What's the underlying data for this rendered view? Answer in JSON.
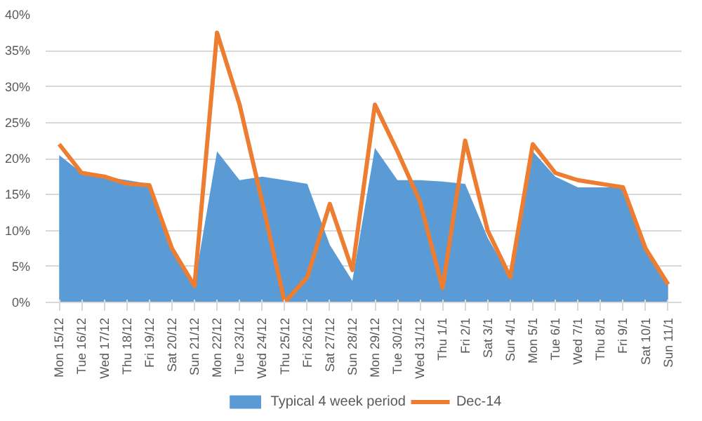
{
  "chart_data": {
    "type": "area",
    "categories": [
      "Mon 15/12",
      "Tue 16/12",
      "Wed 17/12",
      "Thu 18/12",
      "Fri 19/12",
      "Sat 20/12",
      "Sun 21/12",
      "Mon 22/12",
      "Tue 23/12",
      "Wed 24/12",
      "Thu 25/12",
      "Fri 26/12",
      "Sat 27/12",
      "Sun 28/12",
      "Mon 29/12",
      "Tue 30/12",
      "Wed 31/12",
      "Thu 1/1",
      "Fri 2/1",
      "Sat 3/1",
      "Sun 4/1",
      "Mon 5/1",
      "Tue 6/1",
      "Wed 7/1",
      "Thu 8/1",
      "Fri 9/1",
      "Sat 10/1",
      "Sun 11/1"
    ],
    "series": [
      {
        "name": "Typical 4 week period",
        "color": "#5b9bd5",
        "values": [
          20.5,
          18,
          17.5,
          17,
          16.5,
          8,
          2.5,
          21,
          17,
          17.5,
          17,
          16.5,
          8,
          3,
          21.5,
          17,
          17,
          16.8,
          16.5,
          9,
          3.5,
          21,
          17.5,
          16,
          16,
          16,
          7.5,
          2.5
        ]
      },
      {
        "name": "Dec-14",
        "type": "line",
        "color": "#ed7d31",
        "values": [
          22,
          18,
          17.5,
          16.5,
          16.3,
          7.5,
          2.3,
          37.5,
          27.5,
          14,
          0,
          3.5,
          13.7,
          4.5,
          27.5,
          21,
          14,
          2,
          22.5,
          10,
          3.5,
          22,
          18,
          17,
          16.5,
          16,
          7.5,
          2.5
        ]
      }
    ],
    "ylim": [
      0,
      40
    ],
    "yticks": [
      {
        "value": 0,
        "label": "0%"
      },
      {
        "value": 5,
        "label": "5%"
      },
      {
        "value": 10,
        "label": "10%"
      },
      {
        "value": 15,
        "label": "15%"
      },
      {
        "value": 20,
        "label": "20%"
      },
      {
        "value": 25,
        "label": "25%"
      },
      {
        "value": 30,
        "label": "30%"
      },
      {
        "value": 35,
        "label": "35%"
      },
      {
        "value": 40,
        "label": "40%"
      }
    ],
    "grid": "y",
    "legend": "bottom",
    "line_style": "solid"
  }
}
